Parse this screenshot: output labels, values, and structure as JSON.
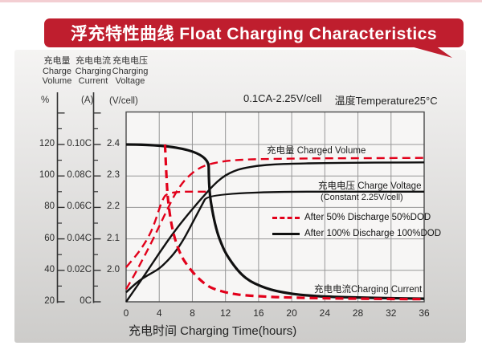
{
  "banner": {
    "title": "浮充特性曲线 Float Charging Characteristics",
    "color": "#bf1e2e"
  },
  "chart_data": {
    "type": "line",
    "title": "浮充特性曲线 Float Charging Characteristics",
    "conditions": {
      "ratio": "0.1CA-2.25V/cell",
      "temperature": "温度Temperature25°C"
    },
    "x_axis": {
      "label": "充电时间 Charging Time(hours)",
      "ticks": [
        0,
        4,
        8,
        12,
        16,
        20,
        24,
        28,
        32,
        36
      ],
      "range": [
        0,
        36
      ]
    },
    "y_axes": [
      {
        "zh": "充电量",
        "en1": "Charge",
        "en2": "Volume",
        "unit": "%",
        "ticks": [
          "120",
          "100",
          "80",
          "60",
          "40",
          "20"
        ],
        "range": [
          20,
          140
        ]
      },
      {
        "zh": "充电电流",
        "en1": "Charging",
        "en2": "Current",
        "unit": "(A)",
        "ticks": [
          "0.10C",
          "0.08C",
          "0.06C",
          "0.04C",
          "0.02C",
          "0C"
        ],
        "range": [
          0,
          0.12
        ]
      },
      {
        "zh": "充电电压",
        "en1": "Charging",
        "en2": "Voltage",
        "unit": "(V/cell)",
        "ticks": [
          "2.4",
          "2.3",
          "2.2",
          "2.1",
          "2.0"
        ],
        "range": [
          1.9,
          2.5
        ]
      }
    ],
    "annotations": {
      "charged_volume": "充电量 Charged Volume",
      "charge_voltage": "充电电压 Charge Voltage",
      "constant_note": "(Constant 2.25V/cell)",
      "charging_current": "充电电流Charging Current"
    },
    "legend": [
      {
        "label": "After 50% Discharge 50%DOD",
        "style": "dashed",
        "color": "#e2001a"
      },
      {
        "label": "After 100%  Discharge 100%DOD",
        "style": "solid",
        "color": "#111111"
      }
    ],
    "grid": true,
    "series": [
      {
        "name": "charged_volume_after_100pct_discharge",
        "unit": "%",
        "color": "#111111",
        "dash": false,
        "width": 2.4,
        "points": [
          [
            0,
            20
          ],
          [
            2,
            35
          ],
          [
            4,
            51
          ],
          [
            6,
            66
          ],
          [
            8,
            79
          ],
          [
            10,
            91
          ],
          [
            11,
            96.5
          ],
          [
            12,
            100.5
          ],
          [
            13,
            103
          ],
          [
            14,
            104.8
          ],
          [
            16,
            106.6
          ],
          [
            18,
            107.4
          ],
          [
            20,
            107.8
          ],
          [
            24,
            108.2
          ],
          [
            28,
            108.4
          ],
          [
            32,
            108.5
          ],
          [
            36,
            108.6
          ]
        ]
      },
      {
        "name": "charge_voltage_after_100pct_discharge",
        "unit": "V",
        "color": "#111111",
        "dash": false,
        "width": 2.4,
        "points": [
          [
            0,
            1.93
          ],
          [
            1,
            1.955
          ],
          [
            2,
            1.975
          ],
          [
            3,
            1.99
          ],
          [
            4,
            2.005
          ],
          [
            5,
            2.03
          ],
          [
            6,
            2.06
          ],
          [
            7,
            2.1
          ],
          [
            8,
            2.15
          ],
          [
            9,
            2.2
          ],
          [
            10,
            2.25
          ],
          [
            36,
            2.25
          ]
        ]
      },
      {
        "name": "charging_current_after_100pct_discharge",
        "unit": "C",
        "color": "#111111",
        "dash": false,
        "width": 3.2,
        "points": [
          [
            0,
            0.1
          ],
          [
            9.95,
            0.1
          ],
          [
            10,
            0.071
          ],
          [
            10.5,
            0.055
          ],
          [
            11,
            0.044
          ],
          [
            11.5,
            0.037
          ],
          [
            12,
            0.031
          ],
          [
            13,
            0.023
          ],
          [
            14,
            0.017
          ],
          [
            15,
            0.013
          ],
          [
            16,
            0.0105
          ],
          [
            17,
            0.0085
          ],
          [
            18,
            0.007
          ],
          [
            20,
            0.005
          ],
          [
            22,
            0.004
          ],
          [
            24,
            0.0033
          ],
          [
            28,
            0.0027
          ],
          [
            32,
            0.0023
          ],
          [
            36,
            0.002
          ]
        ]
      },
      {
        "name": "charge_voltage_after_50pct_discharge",
        "unit": "V",
        "color": "#e2001a",
        "dash": true,
        "width": 2.4,
        "points": [
          [
            0,
            2.01
          ],
          [
            1,
            2.04
          ],
          [
            2,
            2.075
          ],
          [
            3,
            2.12
          ],
          [
            3.7,
            2.17
          ],
          [
            4.3,
            2.22
          ],
          [
            5,
            2.25
          ],
          [
            10,
            2.25
          ]
        ]
      },
      {
        "name": "charged_volume_after_50pct_discharge",
        "unit": "%",
        "color": "#e2001a",
        "dash": true,
        "width": 2.4,
        "points": [
          [
            0,
            28
          ],
          [
            1,
            37
          ],
          [
            2,
            47
          ],
          [
            3,
            57
          ],
          [
            4,
            68
          ],
          [
            5,
            79
          ],
          [
            6,
            89.5
          ],
          [
            7,
            97
          ],
          [
            8,
            102
          ],
          [
            9,
            105.5
          ],
          [
            10,
            107.5
          ],
          [
            12,
            109.6
          ],
          [
            14,
            110.3
          ],
          [
            16,
            110.7
          ],
          [
            20,
            111
          ],
          [
            24,
            111.2
          ],
          [
            28,
            111.3
          ],
          [
            32,
            111.4
          ],
          [
            36,
            111.5
          ]
        ]
      },
      {
        "name": "charging_current_after_50pct_discharge",
        "unit": "C",
        "color": "#e2001a",
        "dash": true,
        "width": 3.2,
        "points": [
          [
            4.7,
            0.1
          ],
          [
            4.9,
            0.075
          ],
          [
            5.1,
            0.062
          ],
          [
            5.5,
            0.048
          ],
          [
            6,
            0.038
          ],
          [
            6.5,
            0.031
          ],
          [
            7,
            0.026
          ],
          [
            8,
            0.019
          ],
          [
            9,
            0.0135
          ],
          [
            10,
            0.0095
          ],
          [
            11,
            0.0075
          ],
          [
            12,
            0.006
          ],
          [
            13,
            0.005
          ],
          [
            14,
            0.0043
          ],
          [
            16,
            0.0035
          ],
          [
            18,
            0.003
          ],
          [
            20,
            0.0027
          ],
          [
            24,
            0.0022
          ],
          [
            28,
            0.002
          ],
          [
            32,
            0.0018
          ],
          [
            36,
            0.0017
          ]
        ]
      }
    ]
  }
}
